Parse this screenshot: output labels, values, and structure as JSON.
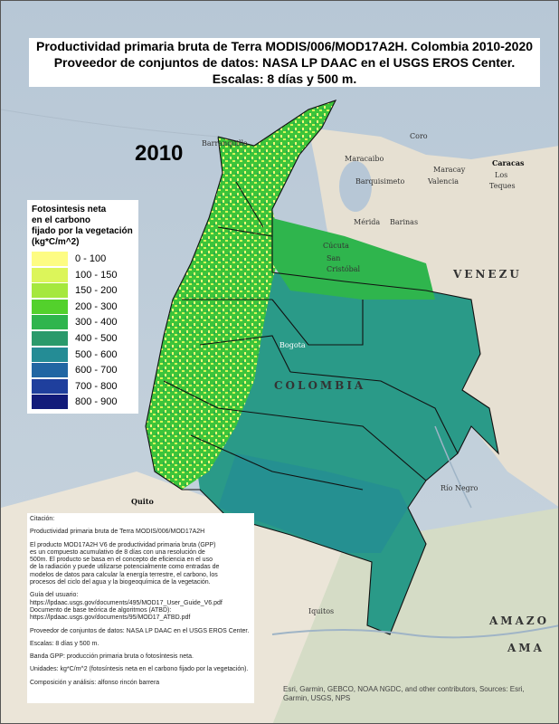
{
  "title": {
    "line1": "Productividad primaria bruta de Terra MODIS/006/MOD17A2H.  Colombia 2010-2020",
    "line2": "Proveedor de conjuntos de datos: NASA LP DAAC en el USGS EROS Center.",
    "line3": "Escalas: 8 días y 500 m."
  },
  "year": "2010",
  "legend": {
    "title": [
      "Fotosintesis neta",
      "en el carbono",
      "fijado por la vegetación",
      "(kg*C/m^2)"
    ],
    "items": [
      {
        "label": "0 - 100",
        "color": "#fdfc83"
      },
      {
        "label": "100 - 150",
        "color": "#dcf55a"
      },
      {
        "label": "150 - 200",
        "color": "#a5e83e"
      },
      {
        "label": "200 - 300",
        "color": "#53d12c"
      },
      {
        "label": "300 - 400",
        "color": "#2fb54d"
      },
      {
        "label": "400 - 500",
        "color": "#2a9a6b"
      },
      {
        "label": "500 - 600",
        "color": "#248c95"
      },
      {
        "label": "600 - 700",
        "color": "#2166a3"
      },
      {
        "label": "700 - 800",
        "color": "#1f3f9d"
      },
      {
        "label": "800 - 900",
        "color": "#121b7a"
      }
    ]
  },
  "citation": {
    "heading": "Citación:",
    "lines": [
      "Productividad primaria bruta de Terra MODIS/006/MOD17A2H",
      "",
      "El producto MOD17A2H V6 de productividad primaria bruta (GPP)",
      "es un compuesto acumulativo de 8 días con una resolución de",
      "500m. El producto se basa en el concepto de eficiencia en el uso",
      "de la radiación y puede utilizarse potencialmente como entradas de",
      "modelos de datos para calcular la energía terrestre, el carbono, los",
      " procesos del ciclo del agua y la biogeoquímica de la vegetación.",
      "",
      "Guía del usuario:",
      "https://lpdaac.usgs.gov/documents/495/MOD17_User_Guide_V6.pdf",
      "Documento de base teórica de algoritmos (ATBD):",
      "https://lpdaac.usgs.gov/documents/95/MOD17_ATBD.pdf",
      "",
      "Proveedor de conjuntos de datos: NASA LP DAAC en el USGS EROS Center.",
      "",
      "Escalas: 8 días y 500 m.",
      "",
      "Banda GPP: producción primaria bruta o fotosíntesis neta.",
      "",
      "Unidades: kg*C/m^2 (fotosíntesis neta en el carbono fijado por la vegetación).",
      "",
      "Composición y análisis: alfonso rincón barrera"
    ]
  },
  "credits": [
    "Esri, Garmin, GEBCO, NOAA NGDC, and other contributors, Sources: Esri,",
    "Garmin, USGS, NPS"
  ],
  "places": {
    "barranquilla": "Barranquilla",
    "maracaibo": "Maracaibo",
    "coro": "Coro",
    "caracas": "Caracas",
    "los_teques_1": "Los",
    "los_teques_2": "Teques",
    "maracay": "Maracay",
    "valencia": "Valencia",
    "barquisimeto": "Barquisimeto",
    "merida": "Mérida",
    "barinas": "Barinas",
    "cucuta": "Cúcuta",
    "san_cristobal_1": "San",
    "san_cristobal_2": "Cristóbal",
    "venezuela": "VENEZU",
    "bogota": "Bogota",
    "colombia": "COLOMBIA",
    "quito": "Quito",
    "iquitos": "Iquitos",
    "rio_negro": "Río Negro",
    "amazonas_1": "AMAZO",
    "amazonas_2": "AMA"
  }
}
